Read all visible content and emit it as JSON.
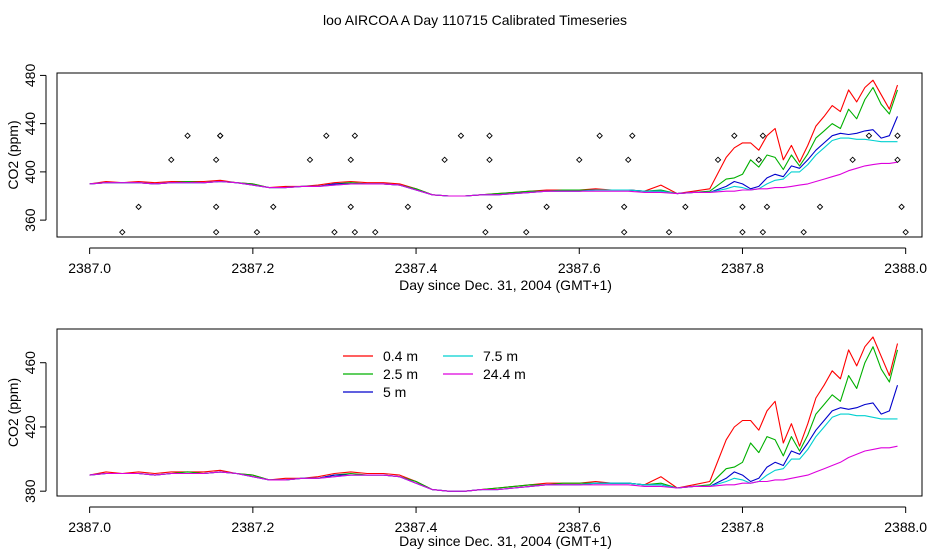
{
  "chart_data": [
    {
      "type": "line",
      "title": "loo AIRCOA A  Day 110715  Calibrated Timeseries",
      "xlabel": "Day since Dec. 31, 2004 (GMT+1)",
      "ylabel": "CO2 (ppm)",
      "xlim": [
        2386.96,
        2388.02
      ],
      "ylim": [
        346,
        482
      ],
      "xticks": [
        2387.0,
        2387.2,
        2387.4,
        2387.6,
        2387.8,
        2388.0
      ],
      "xtick_labels": [
        "2387.0",
        "2387.2",
        "2387.4",
        "2387.6",
        "2387.8",
        "2388.0"
      ],
      "yticks": [
        360,
        400,
        440,
        480
      ],
      "ytick_labels": [
        "360",
        "400",
        "440",
        "480"
      ],
      "grid": false,
      "legend": "none",
      "valve_markers": {
        "x": [
          2387.04,
          2387.06,
          2387.1,
          2387.12,
          2387.155,
          2387.155,
          2387.155,
          2387.16,
          2387.16,
          2387.205,
          2387.225,
          2387.27,
          2387.29,
          2387.3,
          2387.32,
          2387.32,
          2387.325,
          2387.325,
          2387.35,
          2387.39,
          2387.435,
          2387.455,
          2387.485,
          2387.49,
          2387.49,
          2387.49,
          2387.535,
          2387.56,
          2387.6,
          2387.625,
          2387.655,
          2387.655,
          2387.66,
          2387.665,
          2387.71,
          2387.73,
          2387.77,
          2387.79,
          2387.8,
          2387.8,
          2387.82,
          2387.825,
          2387.825,
          2387.83,
          2387.875,
          2387.895,
          2387.935,
          2387.955,
          2387.99,
          2387.99,
          2387.995,
          2388.0
        ],
        "y": [
          350,
          371,
          410,
          430,
          350,
          371,
          410,
          430,
          430,
          350,
          371,
          410,
          430,
          350,
          371,
          410,
          430,
          350,
          350,
          371,
          410,
          430,
          350,
          371,
          410,
          430,
          350,
          371,
          410,
          430,
          350,
          371,
          410,
          430,
          350,
          371,
          410,
          430,
          350,
          371,
          410,
          430,
          350,
          371,
          350,
          371,
          410,
          430,
          410,
          430,
          371,
          350
        ]
      },
      "x": [
        2387.0,
        2387.02,
        2387.04,
        2387.06,
        2387.08,
        2387.1,
        2387.12,
        2387.14,
        2387.16,
        2387.18,
        2387.2,
        2387.22,
        2387.24,
        2387.26,
        2387.28,
        2387.3,
        2387.32,
        2387.34,
        2387.36,
        2387.38,
        2387.4,
        2387.42,
        2387.44,
        2387.46,
        2387.48,
        2387.5,
        2387.52,
        2387.54,
        2387.56,
        2387.58,
        2387.6,
        2387.62,
        2387.64,
        2387.66,
        2387.68,
        2387.7,
        2387.72,
        2387.74,
        2387.76,
        2387.78,
        2387.79,
        2387.8,
        2387.81,
        2387.82,
        2387.83,
        2387.84,
        2387.85,
        2387.86,
        2387.87,
        2387.88,
        2387.89,
        2387.9,
        2387.91,
        2387.92,
        2387.93,
        2387.94,
        2387.95,
        2387.96,
        2387.97,
        2387.98,
        2387.99
      ],
      "series": [
        {
          "name": "0.4 m",
          "color": "#ff0000",
          "values": [
            390,
            392,
            391,
            392,
            391,
            392,
            392,
            392,
            393,
            391,
            390,
            387,
            388,
            388,
            389,
            391,
            392,
            391,
            391,
            390,
            386,
            381,
            380,
            380,
            381,
            382,
            383,
            384,
            385,
            385,
            385,
            386,
            385,
            385,
            384,
            389,
            382,
            384,
            386,
            412,
            420,
            424,
            424,
            418,
            430,
            436,
            410,
            422,
            408,
            422,
            438,
            446,
            455,
            450,
            468,
            458,
            470,
            476,
            464,
            452,
            472
          ]
        },
        {
          "name": "2.5 m",
          "color": "#00b000",
          "values": [
            390,
            391,
            391,
            391,
            390,
            391,
            392,
            391,
            392,
            391,
            390,
            387,
            387,
            388,
            388,
            390,
            391,
            390,
            390,
            389,
            386,
            381,
            380,
            380,
            381,
            382,
            383,
            384,
            384,
            385,
            385,
            385,
            385,
            385,
            384,
            385,
            382,
            383,
            384,
            394,
            395,
            398,
            410,
            404,
            414,
            412,
            402,
            414,
            405,
            415,
            428,
            434,
            440,
            436,
            452,
            444,
            460,
            470,
            456,
            448,
            468
          ]
        },
        {
          "name": "5 m",
          "color": "#0000cc",
          "values": [
            390,
            391,
            391,
            391,
            390,
            391,
            391,
            391,
            392,
            391,
            389,
            387,
            387,
            388,
            388,
            390,
            390,
            390,
            390,
            389,
            385,
            381,
            380,
            380,
            381,
            381,
            382,
            383,
            384,
            384,
            384,
            385,
            385,
            385,
            384,
            384,
            382,
            383,
            383,
            388,
            392,
            390,
            386,
            388,
            395,
            398,
            396,
            405,
            403,
            410,
            418,
            424,
            430,
            432,
            431,
            432,
            434,
            435,
            428,
            430,
            446
          ]
        },
        {
          "name": "7.5 m",
          "color": "#00d0d0",
          "values": [
            390,
            391,
            391,
            391,
            390,
            391,
            391,
            391,
            392,
            391,
            389,
            387,
            387,
            388,
            388,
            389,
            390,
            390,
            390,
            389,
            385,
            381,
            380,
            380,
            381,
            381,
            382,
            383,
            384,
            384,
            384,
            385,
            385,
            385,
            384,
            384,
            382,
            383,
            383,
            386,
            388,
            387,
            385,
            386,
            390,
            393,
            394,
            400,
            400,
            406,
            414,
            420,
            426,
            428,
            428,
            427,
            427,
            426,
            425,
            425,
            425
          ]
        },
        {
          "name": "24.4 m",
          "color": "#dd00dd",
          "values": [
            390,
            391,
            391,
            391,
            390,
            391,
            391,
            391,
            392,
            391,
            389,
            387,
            387,
            388,
            388,
            389,
            390,
            390,
            390,
            389,
            385,
            381,
            380,
            380,
            381,
            381,
            382,
            383,
            384,
            384,
            384,
            384,
            384,
            384,
            383,
            383,
            382,
            383,
            383,
            384,
            384,
            385,
            385,
            386,
            386,
            387,
            387,
            388,
            389,
            390,
            392,
            394,
            396,
            398,
            401,
            403,
            405,
            406,
            407,
            407,
            408
          ]
        }
      ]
    },
    {
      "type": "line",
      "title": "",
      "xlabel": "Day since Dec. 31, 2004 (GMT+1)",
      "ylabel": "CO2 (ppm)",
      "xlim": [
        2386.96,
        2388.02
      ],
      "ylim": [
        377,
        481
      ],
      "xticks": [
        2387.0,
        2387.2,
        2387.4,
        2387.6,
        2387.8,
        2388.0
      ],
      "xtick_labels": [
        "2387.0",
        "2387.2",
        "2387.4",
        "2387.6",
        "2387.8",
        "2388.0"
      ],
      "yticks": [
        380,
        420,
        460
      ],
      "ytick_labels": [
        "380",
        "420",
        "460"
      ],
      "grid": false,
      "legend": "top-left",
      "legend_columns": [
        [
          "0.4 m",
          "2.5 m",
          "5 m"
        ],
        [
          "7.5 m",
          "24.4 m"
        ]
      ]
    }
  ]
}
